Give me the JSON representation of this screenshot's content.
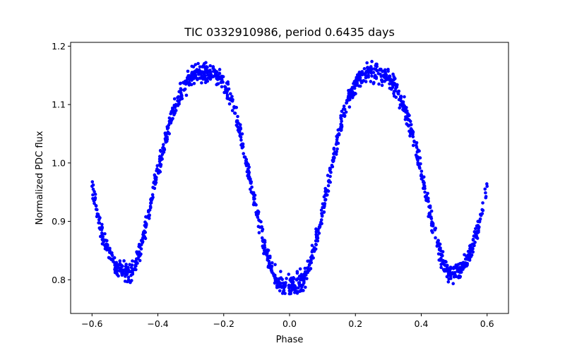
{
  "chart_data": {
    "type": "scatter",
    "title": "TIC 0332910986, period 0.6435 days",
    "xlabel": "Phase",
    "ylabel": "Normalized PDC flux",
    "xlim": [
      -0.665,
      0.665
    ],
    "ylim": [
      0.7423,
      1.2065
    ],
    "xticks": [
      -0.6,
      -0.4,
      -0.2,
      0.0,
      0.2,
      0.4,
      0.6
    ],
    "xtick_labels": [
      "−0.6",
      "−0.4",
      "−0.2",
      "0.0",
      "0.2",
      "0.4",
      "0.6"
    ],
    "yticks": [
      0.8,
      0.9,
      1.0,
      1.1,
      1.2
    ],
    "ytick_labels": [
      "0.8",
      "0.9",
      "1.0",
      "1.1",
      "1.2"
    ],
    "grid": false,
    "legend": "none",
    "marker_color": "#0000ff",
    "series": [
      {
        "x": [
          -0.6,
          -0.585,
          -0.57,
          -0.555,
          -0.54,
          -0.525,
          -0.51,
          -0.495,
          -0.48,
          -0.465,
          -0.45,
          -0.435,
          -0.42,
          -0.405,
          -0.39,
          -0.375,
          -0.36,
          -0.345,
          -0.33,
          -0.315,
          -0.3,
          -0.285,
          -0.27,
          -0.255,
          -0.24,
          -0.225,
          -0.21,
          -0.195,
          -0.18,
          -0.165,
          -0.15,
          -0.135,
          -0.12,
          -0.105,
          -0.09,
          -0.075,
          -0.06,
          -0.045,
          -0.03,
          -0.015,
          0.0,
          0.015,
          0.03,
          0.045,
          0.06,
          0.075,
          0.09,
          0.105,
          0.12,
          0.135,
          0.15,
          0.165,
          0.18,
          0.195,
          0.21,
          0.225,
          0.24,
          0.255,
          0.27,
          0.285,
          0.3,
          0.315,
          0.33,
          0.345,
          0.36,
          0.375,
          0.39,
          0.405,
          0.42,
          0.435,
          0.45,
          0.465,
          0.48,
          0.495,
          0.51,
          0.525,
          0.54,
          0.555,
          0.57,
          0.585,
          0.6
        ],
        "y": [
          0.96,
          0.92,
          0.88,
          0.855,
          0.835,
          0.82,
          0.815,
          0.812,
          0.815,
          0.83,
          0.86,
          0.895,
          0.935,
          0.975,
          1.01,
          1.045,
          1.075,
          1.1,
          1.12,
          1.135,
          1.145,
          1.15,
          1.153,
          1.155,
          1.155,
          1.152,
          1.145,
          1.13,
          1.11,
          1.085,
          1.05,
          1.01,
          0.97,
          0.93,
          0.89,
          0.855,
          0.825,
          0.805,
          0.795,
          0.79,
          0.789,
          0.79,
          0.795,
          0.805,
          0.825,
          0.855,
          0.89,
          0.93,
          0.97,
          1.01,
          1.05,
          1.085,
          1.11,
          1.13,
          1.145,
          1.152,
          1.155,
          1.155,
          1.153,
          1.15,
          1.145,
          1.135,
          1.12,
          1.1,
          1.075,
          1.045,
          1.01,
          0.975,
          0.935,
          0.895,
          0.86,
          0.83,
          0.815,
          0.812,
          0.815,
          0.82,
          0.835,
          0.855,
          0.88,
          0.92,
          0.96
        ],
        "scatter_width": 0.012
      }
    ]
  }
}
